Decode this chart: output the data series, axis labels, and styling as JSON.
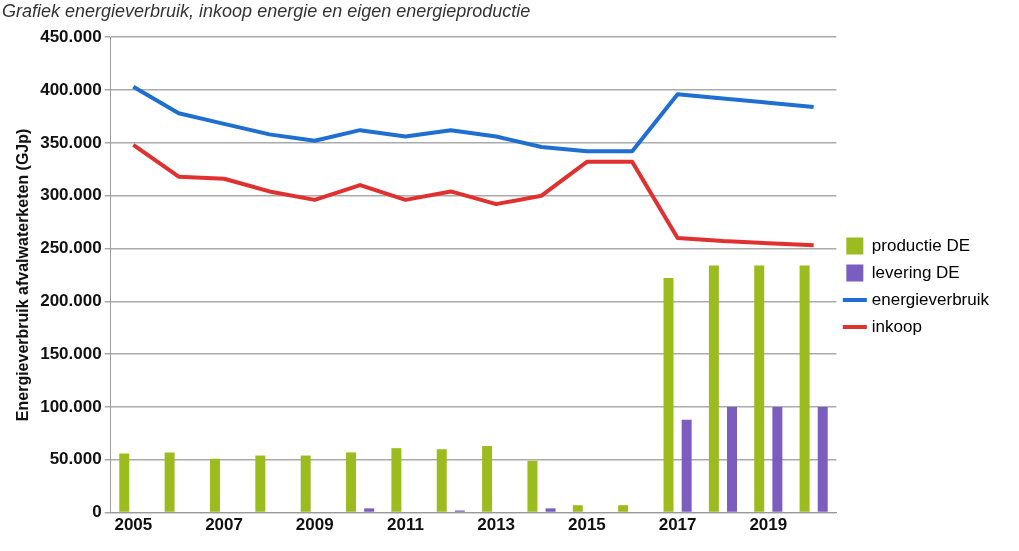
{
  "chart_data": {
    "type": "bar",
    "title": "Grafiek energieverbruik, inkoop energie en eigen energieproductie",
    "ylabel": "Energieverbruik afvalwaterketen (GJp)",
    "categories": [
      "2005",
      null,
      "2007",
      null,
      "2009",
      null,
      "2011",
      null,
      "2013",
      null,
      "2015",
      null,
      "2017",
      null,
      "2019",
      null
    ],
    "series": [
      {
        "name": "productie DE",
        "color": "#9bbb1f",
        "values": [
          56000,
          57000,
          51000,
          54000,
          54000,
          57000,
          61000,
          60000,
          63000,
          49000,
          7000,
          7000,
          222000,
          234000,
          234000,
          234000
        ]
      },
      {
        "name": "levering DE",
        "color": "#7b5cbf",
        "values": [
          0,
          0,
          0,
          0,
          0,
          4000,
          0,
          2000,
          0,
          4000,
          0,
          0,
          88000,
          100000,
          100000,
          100000
        ]
      },
      {
        "name": "energieverbruik",
        "type": "line",
        "color": "#1f6fd0",
        "values": [
          403000,
          378000,
          368000,
          358000,
          352000,
          362000,
          356000,
          362000,
          356000,
          346000,
          342000,
          342000,
          396000,
          392000,
          388000,
          384000
        ]
      },
      {
        "name": "inkoop",
        "type": "line",
        "color": "#e03030",
        "values": [
          348000,
          318000,
          316000,
          304000,
          296000,
          310000,
          296000,
          304000,
          292000,
          300000,
          332000,
          332000,
          260000,
          257000,
          255000,
          253000
        ]
      }
    ],
    "ylim": [
      0,
      450000
    ],
    "yticks": [
      {
        "value": 0,
        "label": "0"
      },
      {
        "value": 50000,
        "label": "50.000"
      },
      {
        "value": 100000,
        "label": "100.000"
      },
      {
        "value": 150000,
        "label": "150.000"
      },
      {
        "value": 200000,
        "label": "200.000"
      },
      {
        "value": 250000,
        "label": "250.000"
      },
      {
        "value": 300000,
        "label": "300.000"
      },
      {
        "value": 350000,
        "label": "350.000"
      },
      {
        "value": 400000,
        "label": "400.000"
      },
      {
        "value": 450000,
        "label": "450.000"
      }
    ],
    "grid": "y",
    "legend": "right",
    "marker": "none",
    "line_style": "solid"
  }
}
